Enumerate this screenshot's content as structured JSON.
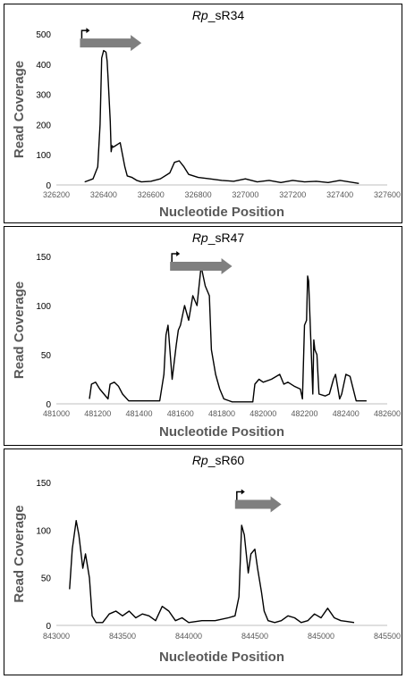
{
  "chart_data": [
    {
      "type": "line",
      "title_italic": "Rp",
      "title_rest": "_sR34",
      "xlabel": "Nucleotide Position",
      "ylabel": "Read Coverage",
      "xlim": [
        326200,
        327600
      ],
      "ylim": [
        0,
        500
      ],
      "xticks": [
        326200,
        326400,
        326600,
        326800,
        327000,
        327200,
        327400,
        327600
      ],
      "yticks": [
        0,
        100,
        200,
        300,
        400,
        500
      ],
      "grid": false,
      "arrow": {
        "x_start": 326300,
        "x_end": 326560,
        "y_level": 470,
        "direction": "right",
        "color": "#7f7f7f"
      },
      "series": [
        {
          "color": "#000000",
          "x": [
            326320,
            326355,
            326375,
            326385,
            326392,
            326400,
            326410,
            326415,
            326420,
            326428,
            326432,
            326436,
            326440,
            326450,
            326460,
            326470,
            326490,
            326500,
            326520,
            326540,
            326560,
            326600,
            326640,
            326680,
            326700,
            326720,
            326740,
            326760,
            326800,
            326850,
            326900,
            326950,
            327000,
            327050,
            327100,
            327150,
            327200,
            327250,
            327300,
            327350,
            327400,
            327480
          ],
          "y": [
            10,
            20,
            60,
            200,
            420,
            445,
            440,
            410,
            340,
            210,
            110,
            130,
            125,
            130,
            135,
            140,
            60,
            30,
            25,
            15,
            10,
            12,
            20,
            40,
            75,
            80,
            60,
            35,
            25,
            20,
            15,
            12,
            20,
            10,
            15,
            8,
            15,
            10,
            12,
            8,
            15,
            5
          ]
        }
      ]
    },
    {
      "type": "line",
      "title_italic": "Rp",
      "title_rest": "_sR47",
      "xlabel": "Nucleotide Position",
      "ylabel": "Read Coverage",
      "xlim": [
        481000,
        482600
      ],
      "ylim": [
        0,
        150
      ],
      "xticks": [
        481000,
        481200,
        481400,
        481600,
        481800,
        482000,
        482200,
        482400,
        482600
      ],
      "yticks": [
        0,
        50,
        100,
        150
      ],
      "grid": false,
      "arrow": {
        "x_start": 481550,
        "x_end": 481850,
        "y_level": 140,
        "direction": "right",
        "color": "#7f7f7f"
      },
      "series": [
        {
          "color": "#000000",
          "x": [
            481160,
            481170,
            481190,
            481210,
            481230,
            481250,
            481260,
            481280,
            481300,
            481320,
            481350,
            481400,
            481450,
            481500,
            481520,
            481530,
            481540,
            481560,
            481580,
            481590,
            481600,
            481620,
            481640,
            481660,
            481680,
            481700,
            481720,
            481740,
            481750,
            481770,
            481790,
            481810,
            481850,
            481900,
            481950,
            481960,
            481980,
            482000,
            482040,
            482080,
            482100,
            482120,
            482150,
            482180,
            482190,
            482200,
            482210,
            482215,
            482220,
            482240,
            482245,
            482250,
            482260,
            482270,
            482300,
            482320,
            482340,
            482350,
            482370,
            482380,
            482400,
            482420,
            482450,
            482460,
            482500
          ],
          "y": [
            5,
            20,
            22,
            15,
            10,
            5,
            20,
            22,
            18,
            10,
            3,
            3,
            3,
            3,
            30,
            70,
            80,
            25,
            60,
            75,
            80,
            100,
            85,
            110,
            100,
            140,
            120,
            110,
            55,
            30,
            15,
            5,
            2,
            2,
            2,
            20,
            25,
            22,
            25,
            30,
            20,
            22,
            18,
            15,
            5,
            80,
            85,
            130,
            125,
            10,
            65,
            55,
            50,
            10,
            8,
            10,
            25,
            30,
            5,
            10,
            30,
            28,
            3,
            3,
            3
          ]
        }
      ]
    },
    {
      "type": "line",
      "title_italic": "Rp",
      "title_rest": "_sR60",
      "xlabel": "Nucleotide Position",
      "ylabel": "Read Coverage",
      "xlim": [
        843000,
        845500
      ],
      "ylim": [
        0,
        150
      ],
      "xticks": [
        843000,
        843500,
        844000,
        844500,
        845000,
        845500
      ],
      "yticks": [
        0,
        50,
        100,
        150
      ],
      "grid": false,
      "arrow": {
        "x_start": 844350,
        "x_end": 844700,
        "y_level": 127,
        "direction": "right",
        "color": "#7f7f7f"
      },
      "series": [
        {
          "color": "#000000",
          "x": [
            843100,
            843120,
            843150,
            843170,
            843200,
            843220,
            843250,
            843270,
            843300,
            843310,
            843350,
            843400,
            843450,
            843500,
            843550,
            843600,
            843650,
            843700,
            843750,
            843800,
            843850,
            843900,
            843950,
            844000,
            844100,
            844200,
            844300,
            844350,
            844380,
            844400,
            844420,
            844450,
            844470,
            844500,
            844520,
            844550,
            844570,
            844600,
            844650,
            844700,
            844750,
            844800,
            844850,
            844900,
            844950,
            845000,
            845050,
            845100,
            845150,
            845200,
            845250
          ],
          "y": [
            38,
            80,
            110,
            95,
            60,
            75,
            50,
            10,
            3,
            3,
            3,
            12,
            15,
            10,
            15,
            8,
            12,
            10,
            5,
            20,
            15,
            5,
            8,
            3,
            5,
            5,
            8,
            10,
            30,
            105,
            95,
            55,
            75,
            80,
            60,
            35,
            15,
            5,
            3,
            5,
            10,
            8,
            3,
            5,
            12,
            8,
            18,
            8,
            5,
            4,
            3
          ]
        }
      ]
    }
  ]
}
